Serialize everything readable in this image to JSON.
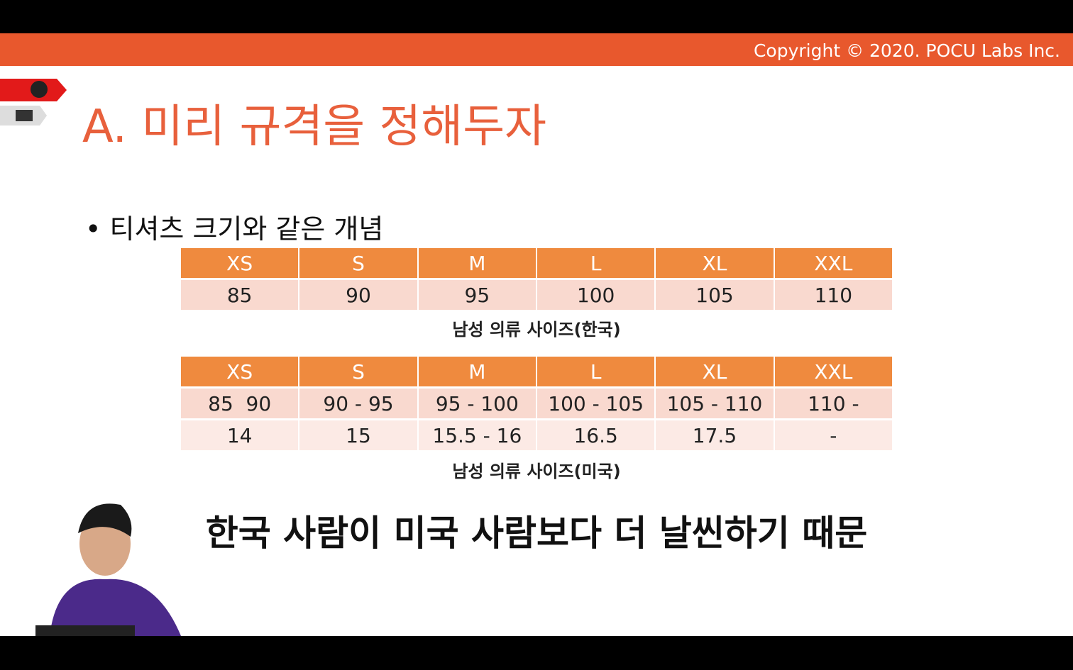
{
  "header": {
    "copyright": "Copyright © 2020. POCU Labs Inc."
  },
  "slide": {
    "title": "A. 미리 규격을 정해두자",
    "bullet": "티셔츠 크기와 같은 개념",
    "table_kr": {
      "header": [
        "XS",
        "S",
        "M",
        "L",
        "XL",
        "XXL"
      ],
      "rows": [
        [
          "85",
          "90",
          "95",
          "100",
          "105",
          "110"
        ]
      ],
      "caption": "남성 의류 사이즈(한국)"
    },
    "table_us": {
      "header": [
        "XS",
        "S",
        "M",
        "L",
        "XL",
        "XXL"
      ],
      "rows": [
        [
          "85  90",
          "90 - 95",
          "95 - 100",
          "100 - 105",
          "105 - 110",
          "110 -"
        ],
        [
          "14",
          "15",
          "15.5 - 16",
          "16.5",
          "17.5",
          "-"
        ]
      ],
      "caption": "남성 의류 사이즈(미국)"
    }
  },
  "subtitle": "한국 사람이 미국 사람보다 더 날씬하기 때문"
}
